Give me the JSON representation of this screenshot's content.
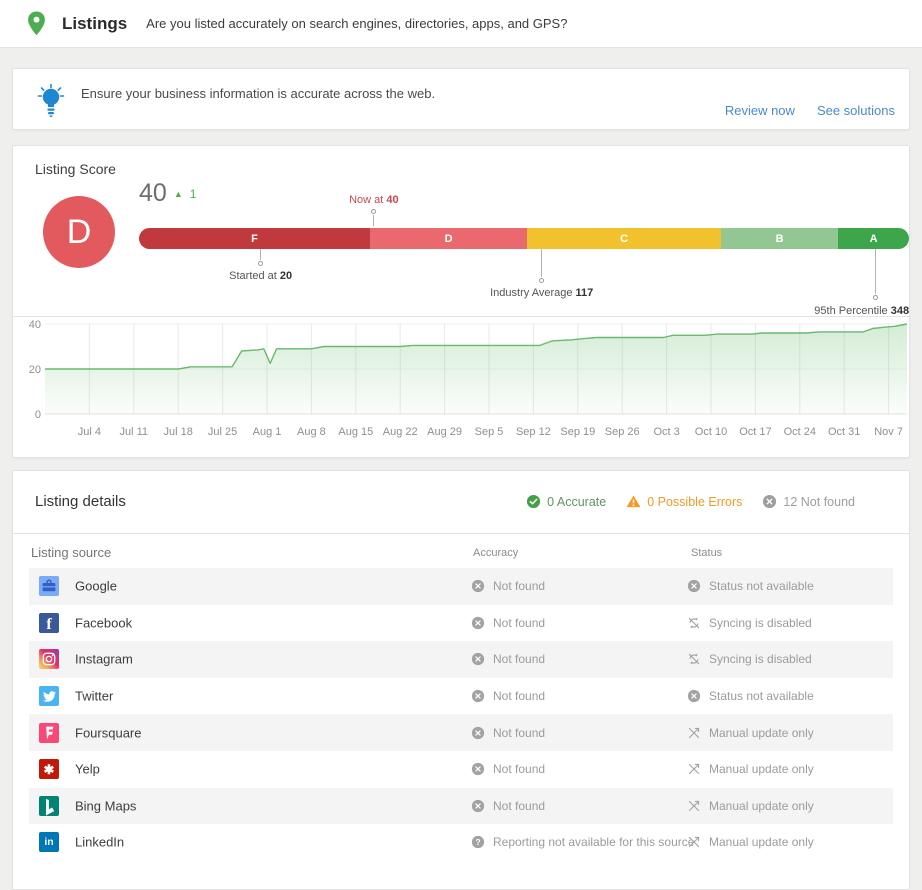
{
  "header": {
    "title": "Listings",
    "subtitle": "Are you listed accurately on search engines, directories, apps, and GPS?",
    "pin_color": "#4cae51"
  },
  "banner": {
    "message": "Ensure your business information is accurate across the web.",
    "bulb_color": "#1f87d2",
    "link_color": "#4a8ac9",
    "links": [
      {
        "label": "Review now"
      },
      {
        "label": "See solutions"
      }
    ]
  },
  "score": {
    "section_title": "Listing Score",
    "grade": "D",
    "grade_circle_color": "#e25a5e",
    "value": "40",
    "delta": "1",
    "delta_color": "#4caf50",
    "grade_bar": {
      "segments": [
        {
          "label": "F",
          "color": "#c0393c",
          "width_pct": 30.0
        },
        {
          "label": "D",
          "color": "#ea696e",
          "width_pct": 20.4
        },
        {
          "label": "C",
          "color": "#f2c12e",
          "width_pct": 25.2
        },
        {
          "label": "B",
          "color": "#92c794",
          "width_pct": 15.2
        },
        {
          "label": "A",
          "color": "#3da64b",
          "width_pct": 9.2
        }
      ]
    },
    "markers": {
      "now": {
        "label": "Now at",
        "value": "40",
        "position_pct": 30.5,
        "color": "#c94a4a"
      },
      "started": {
        "label": "Started at",
        "value": "20",
        "position_pct": 15.8
      },
      "industry": {
        "label": "Industry Average",
        "value": "117",
        "position_pct": 52.3
      },
      "percentile": {
        "label": "95th Percentile",
        "value": "348",
        "position_pct": 95.6
      }
    }
  },
  "chart_data": {
    "type": "area",
    "title": "Listing Score trend",
    "series_name": "Listing Score",
    "line_color": "#69b96e",
    "fill_color": "#66bb6a",
    "day_zero": "Jul 1",
    "point_format": [
      "day_offset_from_Jul_1",
      "score"
    ],
    "x_tick_labels": [
      "Jul 4",
      "Jul 11",
      "Jul 18",
      "Jul 25",
      "Aug 1",
      "Aug 8",
      "Aug 15",
      "Aug 22",
      "Aug 29",
      "Sep 5",
      "Sep 12",
      "Sep 19",
      "Sep 26",
      "Oct 3",
      "Oct 10",
      "Oct 17",
      "Oct 24",
      "Oct 31",
      "Nov 7"
    ],
    "x_tick_day_offsets": [
      3,
      10,
      17,
      24,
      31,
      38,
      45,
      52,
      59,
      66,
      73,
      80,
      87,
      94,
      101,
      108,
      115,
      122,
      129
    ],
    "y_ticks": [
      0,
      20,
      40
    ],
    "ylim": [
      0,
      40
    ],
    "grid": true,
    "series": [
      {
        "name": "Listing Score",
        "points": [
          [
            -4,
            20
          ],
          [
            17,
            20
          ],
          [
            19,
            21
          ],
          [
            25.5,
            21
          ],
          [
            27,
            28
          ],
          [
            29.5,
            28.5
          ],
          [
            30.5,
            29
          ],
          [
            31.5,
            22.5
          ],
          [
            32.5,
            29
          ],
          [
            38,
            29
          ],
          [
            40,
            30
          ],
          [
            52,
            30
          ],
          [
            54,
            30.5
          ],
          [
            74,
            30.5
          ],
          [
            76,
            32.5
          ],
          [
            79,
            33
          ],
          [
            81,
            33.5
          ],
          [
            83,
            34
          ],
          [
            93.5,
            34
          ],
          [
            95,
            35
          ],
          [
            100,
            35
          ],
          [
            102,
            35.5
          ],
          [
            107.5,
            35.5
          ],
          [
            109,
            36
          ],
          [
            116,
            36
          ],
          [
            118,
            36.5
          ],
          [
            125,
            36.5
          ],
          [
            126.5,
            38
          ],
          [
            128,
            38.5
          ],
          [
            130,
            39
          ],
          [
            132.5,
            40
          ]
        ]
      }
    ]
  },
  "details": {
    "title": "Listing details",
    "summary": [
      {
        "icon": "check-circle",
        "icon_color": "#43a047",
        "label": "0 Accurate",
        "text_color": "#5f9563"
      },
      {
        "icon": "warning-triangle",
        "icon_color": "#f59a23",
        "label": "0 Possible Errors",
        "text_color": "#ef9b28"
      },
      {
        "icon": "x-circle",
        "icon_color": "#9e9e9e",
        "label": "12 Not found",
        "text_color": "#9e9e9e"
      }
    ],
    "columns": {
      "source": "Listing source",
      "accuracy": "Accuracy",
      "status": "Status"
    },
    "rows": [
      {
        "name": "Google",
        "brand": "google",
        "accuracy": {
          "icon": "x-circle",
          "text": "Not found"
        },
        "status": {
          "icon": "x-circle",
          "text": "Status not available"
        }
      },
      {
        "name": "Facebook",
        "brand": "facebook",
        "accuracy": {
          "icon": "x-circle",
          "text": "Not found"
        },
        "status": {
          "icon": "sync-disabled",
          "text": "Syncing is disabled"
        }
      },
      {
        "name": "Instagram",
        "brand": "instagram",
        "accuracy": {
          "icon": "x-circle",
          "text": "Not found"
        },
        "status": {
          "icon": "sync-disabled",
          "text": "Syncing is disabled"
        }
      },
      {
        "name": "Twitter",
        "brand": "twitter",
        "accuracy": {
          "icon": "x-circle",
          "text": "Not found"
        },
        "status": {
          "icon": "x-circle",
          "text": "Status not available"
        }
      },
      {
        "name": "Foursquare",
        "brand": "foursquare",
        "accuracy": {
          "icon": "x-circle",
          "text": "Not found"
        },
        "status": {
          "icon": "manual-update",
          "text": "Manual update only"
        }
      },
      {
        "name": "Yelp",
        "brand": "yelp",
        "accuracy": {
          "icon": "x-circle",
          "text": "Not found"
        },
        "status": {
          "icon": "manual-update",
          "text": "Manual update only"
        }
      },
      {
        "name": "Bing Maps",
        "brand": "bing",
        "accuracy": {
          "icon": "x-circle",
          "text": "Not found"
        },
        "status": {
          "icon": "manual-update",
          "text": "Manual update only"
        }
      },
      {
        "name": "LinkedIn",
        "brand": "linkedin",
        "accuracy": {
          "icon": "question-circle",
          "text": "Reporting not available for this source"
        },
        "status": {
          "icon": "manual-update",
          "text": "Manual update only"
        }
      }
    ]
  }
}
